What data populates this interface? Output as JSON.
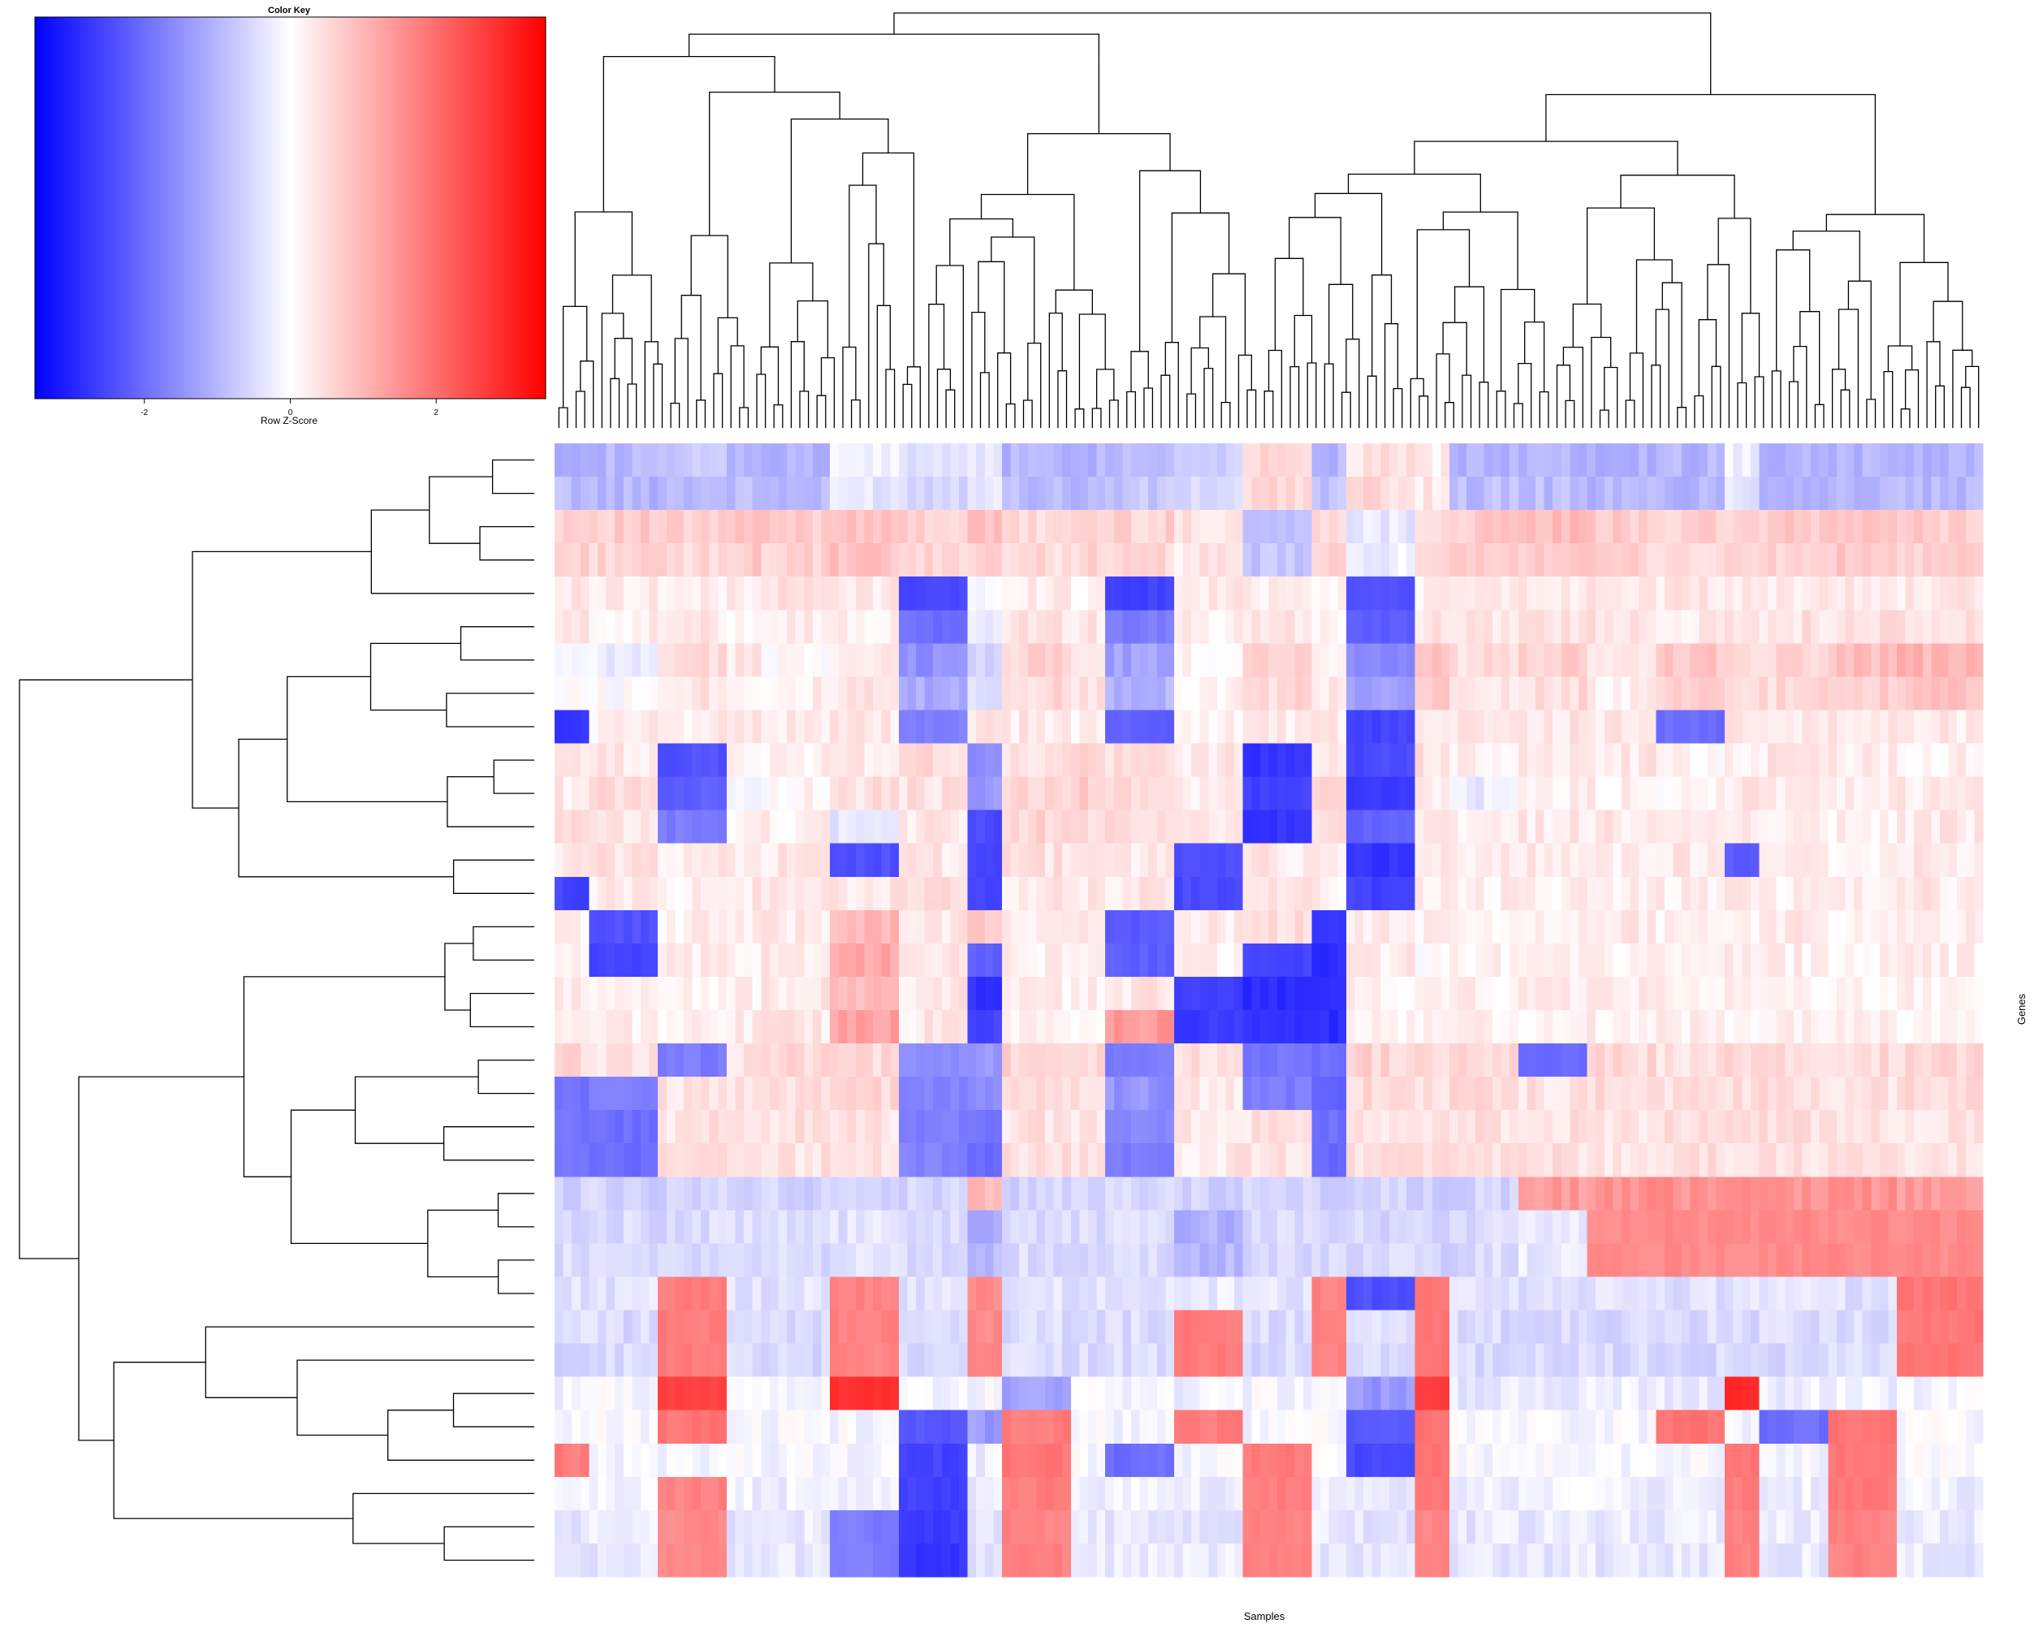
{
  "chart_data": {
    "type": "heatmap",
    "title": "",
    "xlabel": "Samples",
    "ylabel": "Genes",
    "n_rows": 34,
    "n_cols": 166,
    "color_key": {
      "title": "Color Key",
      "label": "Row Z-Score",
      "range": [
        -3.5,
        3.5
      ],
      "ticks": [
        -2,
        0,
        2
      ],
      "tick_labels": [
        "-2",
        "0",
        "2"
      ],
      "low_color": "#0000ff",
      "mid_color": "#ffffff",
      "high_color": "#ff0000"
    },
    "row_dendrogram": true,
    "col_dendrogram": true,
    "row_labels_shown": false,
    "col_labels_shown": false,
    "column_group_boundaries": [
      4,
      12,
      20,
      24,
      32,
      40,
      48,
      52,
      60,
      64,
      72,
      80,
      88,
      92,
      100,
      104,
      112,
      120,
      128,
      136,
      140,
      148,
      156,
      166
    ],
    "row_profiles": [
      [
        -1.0,
        -1.0,
        -0.8,
        -1.0,
        -1.1,
        -0.2,
        -0.4,
        -0.3,
        -1.0,
        -1.0,
        -0.9,
        -0.6,
        0.6,
        -1.0,
        0.4,
        0.2,
        -1.0,
        -1.0,
        -1.0,
        -1.0,
        -0.2,
        -1.0,
        -1.0,
        -1.0
      ],
      [
        -0.9,
        -1.0,
        -0.9,
        -0.9,
        -1.0,
        -0.3,
        -0.5,
        -0.2,
        -0.9,
        -1.0,
        -0.8,
        -0.5,
        0.5,
        -0.8,
        0.5,
        0.3,
        -0.9,
        -0.9,
        -1.0,
        -1.0,
        -0.3,
        -1.0,
        -1.0,
        -1.0
      ],
      [
        0.7,
        0.7,
        0.6,
        0.8,
        0.7,
        0.9,
        0.6,
        0.8,
        0.5,
        0.6,
        0.6,
        0.4,
        -0.9,
        0.6,
        -0.3,
        0.5,
        0.7,
        0.9,
        0.7,
        0.6,
        0.6,
        0.7,
        0.8,
        0.7
      ],
      [
        0.6,
        0.6,
        0.5,
        0.7,
        0.6,
        0.8,
        0.5,
        0.7,
        0.5,
        0.6,
        0.5,
        0.3,
        -0.8,
        0.5,
        -0.2,
        0.4,
        0.6,
        0.8,
        0.6,
        0.5,
        0.5,
        0.6,
        0.7,
        0.6
      ],
      [
        0.3,
        0.3,
        0.2,
        0.3,
        0.4,
        0.3,
        -2.5,
        -0.2,
        0.3,
        0.2,
        -2.6,
        0.3,
        0.3,
        0.2,
        -2.4,
        0.2,
        0.3,
        0.3,
        0.4,
        0.3,
        0.2,
        0.3,
        0.3,
        0.3
      ],
      [
        0.3,
        0.2,
        0.3,
        0.2,
        0.3,
        0.2,
        -2.0,
        -0.3,
        0.4,
        0.3,
        -1.8,
        0.2,
        0.4,
        0.2,
        -2.2,
        0.3,
        0.4,
        0.4,
        0.4,
        0.3,
        0.3,
        0.4,
        0.4,
        0.4
      ],
      [
        -0.2,
        -0.3,
        0.5,
        0.3,
        0.1,
        0.2,
        -1.5,
        -0.6,
        0.6,
        0.3,
        -1.3,
        0.1,
        0.7,
        0.2,
        -1.6,
        0.9,
        0.4,
        0.6,
        0.3,
        0.8,
        0.5,
        0.6,
        0.9,
        1.0
      ],
      [
        0.1,
        0.0,
        0.4,
        0.2,
        0.2,
        0.3,
        -1.2,
        -0.4,
        0.5,
        0.4,
        -1.0,
        0.2,
        0.5,
        0.3,
        -1.4,
        0.7,
        0.3,
        0.5,
        0.2,
        0.6,
        0.4,
        0.5,
        0.7,
        0.8
      ],
      [
        -2.8,
        0.2,
        0.3,
        0.4,
        0.3,
        0.3,
        -1.8,
        0.3,
        0.3,
        0.2,
        -2.2,
        0.2,
        0.3,
        0.3,
        -2.6,
        0.4,
        0.3,
        0.3,
        0.3,
        -2.0,
        0.3,
        0.3,
        0.4,
        0.3
      ],
      [
        0.4,
        0.3,
        -2.4,
        0.1,
        0.2,
        0.3,
        0.5,
        -1.6,
        0.4,
        0.6,
        0.4,
        0.3,
        -2.8,
        0.4,
        -2.5,
        0.4,
        0.2,
        0.3,
        0.3,
        0.1,
        0.2,
        0.3,
        0.3,
        0.2
      ],
      [
        0.3,
        0.5,
        -2.2,
        0.0,
        0.1,
        0.4,
        0.4,
        -1.4,
        0.5,
        0.7,
        0.5,
        0.2,
        -2.6,
        0.5,
        -2.7,
        0.3,
        -0.3,
        0.2,
        0.2,
        0.1,
        0.3,
        0.2,
        0.2,
        0.3
      ],
      [
        0.4,
        0.3,
        -1.8,
        0.1,
        0.2,
        -0.3,
        0.3,
        -2.5,
        0.6,
        0.5,
        0.4,
        0.3,
        -2.8,
        0.4,
        -2.2,
        0.3,
        0.2,
        0.3,
        0.3,
        0.2,
        0.2,
        0.3,
        0.2,
        0.3
      ],
      [
        0.3,
        0.4,
        0.3,
        0.3,
        0.3,
        -2.4,
        0.3,
        -2.6,
        0.4,
        0.3,
        0.3,
        -2.4,
        0.3,
        0.2,
        -2.8,
        0.2,
        0.3,
        0.3,
        0.3,
        0.3,
        -2.2,
        0.3,
        0.2,
        0.3
      ],
      [
        -2.6,
        0.3,
        0.2,
        0.3,
        0.3,
        0.3,
        0.4,
        -2.5,
        0.3,
        0.3,
        0.3,
        -2.5,
        0.3,
        0.2,
        -2.6,
        0.3,
        0.2,
        0.2,
        0.2,
        0.2,
        0.3,
        0.2,
        0.2,
        0.3
      ],
      [
        0.2,
        -2.4,
        0.2,
        0.3,
        0.3,
        1.0,
        0.3,
        0.8,
        0.2,
        0.3,
        -2.3,
        0.3,
        0.5,
        -2.8,
        0.3,
        0.2,
        0.2,
        0.2,
        0.3,
        0.2,
        0.2,
        0.3,
        0.2,
        0.2
      ],
      [
        0.2,
        -2.6,
        0.2,
        0.2,
        0.3,
        1.2,
        0.3,
        -2.2,
        0.2,
        0.3,
        -2.2,
        0.2,
        -2.6,
        -2.9,
        0.3,
        0.1,
        0.2,
        0.2,
        0.2,
        0.2,
        0.2,
        0.2,
        0.2,
        0.2
      ],
      [
        0.2,
        0.2,
        0.2,
        0.2,
        0.3,
        0.9,
        0.3,
        -2.8,
        0.2,
        0.2,
        0.3,
        -2.6,
        -2.9,
        -2.8,
        0.2,
        0.1,
        0.2,
        0.2,
        0.2,
        0.2,
        0.2,
        0.2,
        0.2,
        0.2
      ],
      [
        0.3,
        0.2,
        0.2,
        0.3,
        0.3,
        1.3,
        0.3,
        -2.6,
        0.2,
        0.2,
        1.4,
        -2.7,
        -2.8,
        -2.9,
        0.2,
        0.1,
        0.2,
        0.2,
        0.2,
        0.2,
        0.2,
        0.2,
        0.2,
        0.2
      ],
      [
        0.5,
        0.4,
        -1.8,
        0.4,
        0.5,
        0.5,
        -1.6,
        -1.5,
        0.6,
        0.5,
        -1.8,
        0.4,
        -1.9,
        -2.0,
        0.6,
        0.5,
        0.5,
        -2.0,
        0.5,
        0.4,
        0.5,
        0.5,
        0.5,
        0.5
      ],
      [
        -1.9,
        -1.8,
        0.4,
        0.4,
        0.5,
        0.5,
        -1.7,
        -1.6,
        0.5,
        0.4,
        -1.5,
        0.3,
        -1.8,
        -2.1,
        0.5,
        0.5,
        0.5,
        0.4,
        0.5,
        0.4,
        0.5,
        0.5,
        0.4,
        0.5
      ],
      [
        -1.9,
        -2.0,
        0.4,
        0.4,
        0.4,
        0.4,
        -1.8,
        -1.9,
        0.4,
        0.4,
        -1.6,
        0.3,
        0.4,
        -2.0,
        0.4,
        0.4,
        0.4,
        0.4,
        0.4,
        0.4,
        0.4,
        0.4,
        0.4,
        0.4
      ],
      [
        -1.9,
        -2.0,
        0.4,
        0.4,
        0.4,
        0.4,
        -1.7,
        -2.0,
        0.4,
        0.4,
        -1.8,
        0.3,
        0.4,
        -2.1,
        0.4,
        0.4,
        0.4,
        0.4,
        0.4,
        0.4,
        0.4,
        0.4,
        0.4,
        0.4
      ],
      [
        -0.6,
        -0.6,
        -0.6,
        -0.5,
        -0.6,
        -0.5,
        -0.6,
        1.0,
        -0.6,
        -0.6,
        -0.5,
        -0.6,
        -0.6,
        -0.6,
        -0.6,
        -0.7,
        -0.6,
        1.4,
        1.5,
        1.5,
        1.5,
        1.5,
        1.5,
        1.4
      ],
      [
        -0.5,
        -0.5,
        -0.5,
        -0.5,
        -0.5,
        -0.4,
        -0.5,
        -1.2,
        -0.5,
        -0.5,
        -0.5,
        -1.1,
        -0.5,
        -0.5,
        -0.5,
        -0.6,
        -0.5,
        -0.3,
        1.6,
        1.6,
        1.6,
        1.6,
        1.6,
        1.6
      ],
      [
        -0.5,
        -0.5,
        -0.5,
        -0.5,
        -0.5,
        -0.4,
        -0.5,
        -1.0,
        -0.5,
        -0.5,
        -0.5,
        -1.0,
        -0.5,
        -0.5,
        -0.5,
        -0.6,
        -0.5,
        -0.3,
        1.6,
        1.6,
        1.6,
        1.6,
        1.6,
        1.6
      ],
      [
        -0.4,
        -0.4,
        1.8,
        -0.4,
        -0.4,
        1.7,
        -0.4,
        1.6,
        -0.4,
        -0.4,
        -0.4,
        -0.3,
        -0.4,
        1.7,
        -2.4,
        1.9,
        -0.4,
        -0.4,
        -0.4,
        -0.4,
        -0.4,
        -0.4,
        -0.4,
        1.9
      ],
      [
        -0.5,
        -0.5,
        1.8,
        -0.5,
        -0.5,
        1.7,
        -0.5,
        1.6,
        -0.5,
        -0.5,
        -0.5,
        1.8,
        -0.5,
        1.7,
        -0.5,
        1.9,
        -0.5,
        -0.5,
        -0.5,
        -0.5,
        -0.5,
        -0.5,
        -0.5,
        1.9
      ],
      [
        -0.5,
        -0.5,
        1.8,
        -0.5,
        -0.5,
        1.7,
        -0.5,
        1.6,
        -0.5,
        -0.5,
        -0.5,
        1.8,
        -0.5,
        1.7,
        -0.5,
        1.9,
        -0.5,
        -0.5,
        -0.5,
        -0.5,
        -0.5,
        -0.5,
        -0.5,
        1.9
      ],
      [
        -0.2,
        -0.1,
        2.6,
        -0.1,
        -0.1,
        2.8,
        -0.2,
        -0.1,
        -1.2,
        -0.1,
        -0.1,
        -0.2,
        -0.1,
        -0.1,
        -1.4,
        2.6,
        -0.3,
        -0.3,
        -0.2,
        -0.3,
        2.9,
        -0.2,
        -0.2,
        -0.1
      ],
      [
        -0.1,
        -0.1,
        1.9,
        -0.1,
        -0.1,
        -0.1,
        -2.3,
        -1.4,
        1.8,
        -0.1,
        -0.1,
        1.8,
        -0.1,
        -0.1,
        -2.3,
        1.9,
        -0.1,
        -0.1,
        -0.1,
        1.9,
        -0.1,
        -2.0,
        1.9,
        -0.1
      ],
      [
        1.8,
        -0.1,
        -0.1,
        -0.1,
        -0.1,
        -0.1,
        -2.6,
        -0.2,
        1.9,
        -0.1,
        -2.0,
        -0.1,
        1.8,
        -0.1,
        -2.5,
        1.9,
        -0.1,
        -0.1,
        -0.1,
        -0.1,
        1.9,
        -0.1,
        1.9,
        -0.1
      ],
      [
        -0.2,
        -0.2,
        1.7,
        -0.2,
        -0.2,
        -0.2,
        -2.6,
        -0.3,
        1.8,
        -0.2,
        -0.2,
        -0.2,
        1.8,
        -0.2,
        -0.3,
        1.8,
        -0.2,
        -0.2,
        -0.2,
        -0.2,
        1.8,
        -0.2,
        1.8,
        -0.2
      ],
      [
        -0.3,
        -0.3,
        1.6,
        -0.3,
        -0.3,
        -1.8,
        -2.7,
        -0.4,
        1.7,
        -0.3,
        -0.3,
        -0.3,
        1.7,
        -0.3,
        -0.4,
        1.7,
        -0.3,
        -0.3,
        -0.3,
        -0.3,
        1.7,
        -0.3,
        1.7,
        -0.3
      ],
      [
        -0.3,
        -0.3,
        1.6,
        -0.3,
        -0.3,
        -1.8,
        -2.8,
        -0.4,
        1.7,
        -0.3,
        -0.3,
        -0.3,
        1.7,
        -0.3,
        -0.4,
        1.7,
        -0.3,
        -0.3,
        -0.3,
        -0.3,
        1.7,
        -0.3,
        1.7,
        -0.3
      ]
    ]
  }
}
